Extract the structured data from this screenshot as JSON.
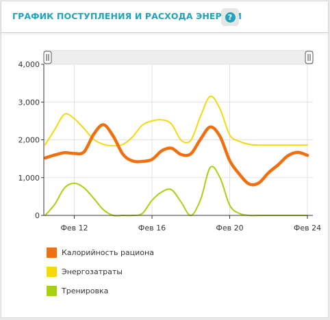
{
  "header": {
    "title": "ГРАФИК ПОСТУПЛЕНИЯ И РАСХОДА ЭНЕРГИИ",
    "help_symbol": "?"
  },
  "colors": {
    "accent": "#1fa3be",
    "calories": "#f07010",
    "expenditure": "#f5d90a",
    "training": "#a8d010"
  },
  "chart_data": {
    "type": "line",
    "x_labels": [
      "Фев 12",
      "Фев 16",
      "Фев 20",
      "Фев 24"
    ],
    "x_label_positions": [
      12,
      16,
      20,
      24
    ],
    "x_range": [
      10.5,
      24
    ],
    "y_ticks": [
      "0",
      "1,000",
      "2,000",
      "3,000",
      "4,000"
    ],
    "y_tick_values": [
      0,
      1000,
      2000,
      3000,
      4000
    ],
    "ylim": [
      0,
      4000
    ],
    "grid": true,
    "range_selector": true,
    "legend_position": "bottom-left",
    "series": [
      {
        "name": "Калорийность рациона",
        "color_key": "calories",
        "x": [
          10.5,
          11,
          11.5,
          12,
          12.5,
          13,
          13.5,
          14,
          14.5,
          15,
          15.5,
          16,
          16.5,
          17,
          17.5,
          18,
          18.5,
          19,
          19.5,
          20,
          20.5,
          21,
          21.5,
          22,
          22.5,
          23,
          23.5,
          24
        ],
        "values": [
          1520,
          1600,
          1660,
          1640,
          1680,
          2150,
          2400,
          2100,
          1620,
          1440,
          1430,
          1480,
          1710,
          1780,
          1610,
          1630,
          2020,
          2340,
          2090,
          1450,
          1090,
          830,
          860,
          1130,
          1340,
          1580,
          1670,
          1590
        ]
      },
      {
        "name": "Энергозатраты",
        "color_key": "expenditure",
        "x": [
          10.5,
          11,
          11.5,
          12,
          12.5,
          13,
          13.5,
          14,
          14.5,
          15,
          15.5,
          16,
          16.5,
          17,
          17.5,
          18,
          18.5,
          19,
          19.5,
          20,
          20.5,
          21,
          21.5,
          22,
          22.5,
          23,
          23.5,
          24
        ],
        "values": [
          1870,
          2280,
          2680,
          2560,
          2300,
          2010,
          1880,
          1840,
          1880,
          2080,
          2390,
          2500,
          2530,
          2420,
          1990,
          1990,
          2630,
          3150,
          2820,
          2130,
          1960,
          1880,
          1860,
          1860,
          1860,
          1860,
          1860,
          1860
        ]
      },
      {
        "name": "Тренировка",
        "color_key": "training",
        "x": [
          10.5,
          11,
          11.5,
          12,
          12.5,
          13,
          13.5,
          14,
          14.5,
          15,
          15.5,
          16,
          16.5,
          17,
          17.5,
          18,
          18.5,
          19,
          19.5,
          20,
          20.5,
          21,
          21.5,
          22,
          22.5,
          23,
          23.5,
          24
        ],
        "values": [
          0,
          300,
          730,
          850,
          730,
          450,
          150,
          0,
          0,
          0,
          50,
          400,
          620,
          680,
          350,
          0,
          420,
          1270,
          1000,
          270,
          50,
          0,
          0,
          0,
          0,
          0,
          0,
          0
        ]
      }
    ]
  }
}
